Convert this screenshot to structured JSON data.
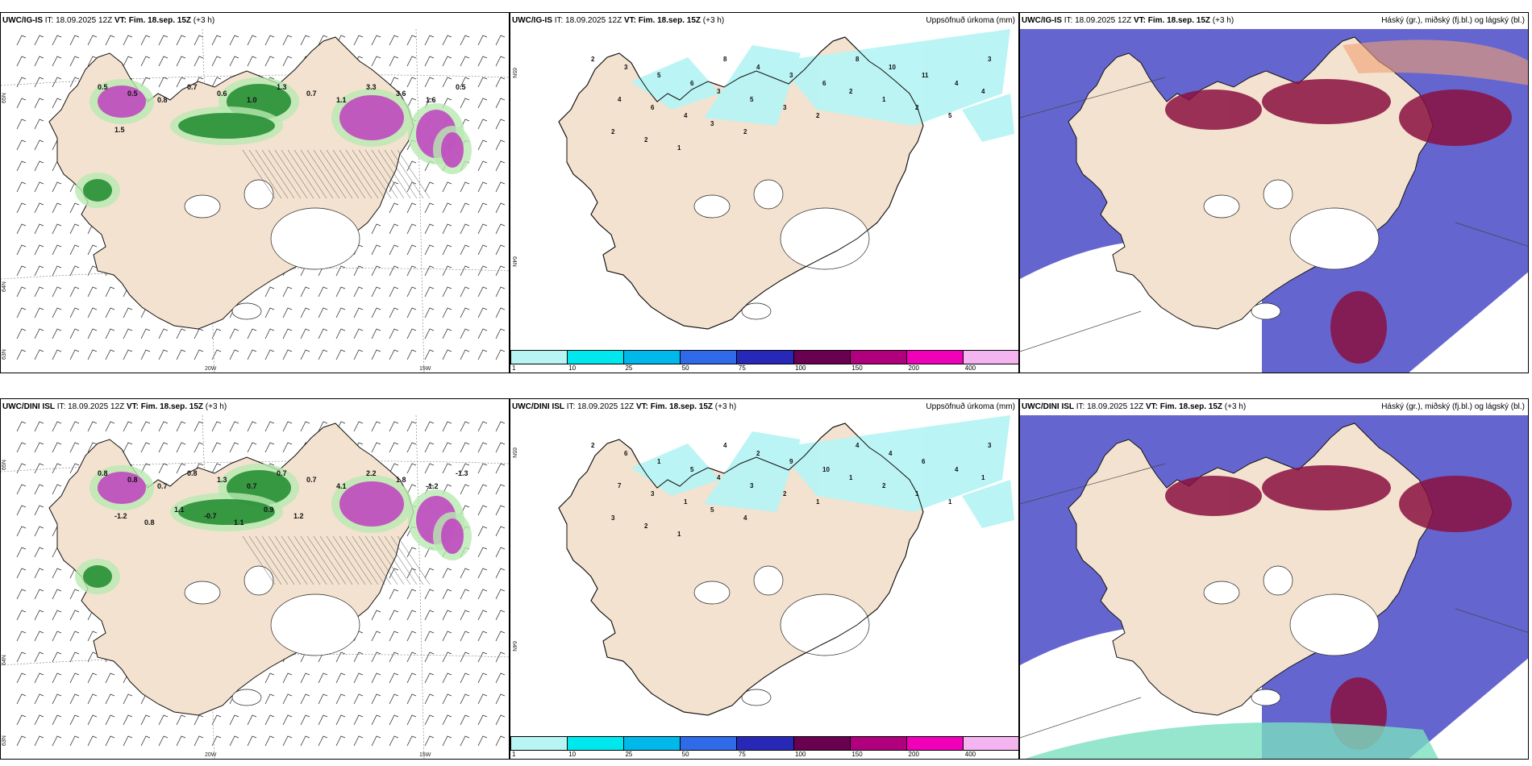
{
  "panels": [
    {
      "id": "ig-wind",
      "model": "UWC/IG-IS",
      "it_label": "IT: 18.09.2025 12Z",
      "vt_label": "VT: Fim. 18.sep. 15Z",
      "lead": "(+3 h)",
      "right_title": "",
      "lat_labels": [
        "65N",
        "64N",
        "63N"
      ],
      "lon_labels": [
        "20W",
        "15W"
      ],
      "values": [
        "0.5",
        "0.5",
        "0.8",
        "0.7",
        "0.6",
        "1.0",
        "1.3",
        "0.7",
        "1.1",
        "3.3",
        "3.6",
        "1.6",
        "0.5",
        "1.5"
      ]
    },
    {
      "id": "ig-precip",
      "model": "UWC/IG-IS",
      "it_label": "IT: 18.09.2025 12Z",
      "vt_label": "VT: Fim. 18.sep. 15Z",
      "lead": "(+3 h)",
      "right_title": "Uppsöfnuð úrkoma (mm)",
      "lat_labels": [
        "65N",
        "64N"
      ],
      "lon_labels": [],
      "values": [
        "2",
        "3",
        "5",
        "6",
        "8",
        "4",
        "3",
        "6",
        "8",
        "10",
        "11",
        "4",
        "3",
        "4",
        "6",
        "4",
        "3",
        "5",
        "3",
        "2",
        "2",
        "1",
        "2",
        "5",
        "4",
        "2",
        "2",
        "1",
        "3",
        "2"
      ]
    },
    {
      "id": "ig-cloud",
      "model": "UWC/IG-IS",
      "it_label": "IT: 18.09.2025 12Z",
      "vt_label": "VT: Fim. 18.sep. 15Z",
      "lead": "(+3 h)",
      "right_title": "Háský (gr.), miðský (fj.bl.) og lágský (bl.)",
      "lat_labels": [],
      "lon_labels": [],
      "values": []
    },
    {
      "id": "dini-wind",
      "model": "UWC/DINI ISL",
      "it_label": "IT: 18.09.2025 12Z",
      "vt_label": "VT: Fim. 18.sep. 15Z",
      "lead": "(+3 h)",
      "right_title": "",
      "lat_labels": [
        "65N",
        "64N",
        "63N"
      ],
      "lon_labels": [
        "20W",
        "15W"
      ],
      "values": [
        "0.8",
        "0.8",
        "0.7",
        "0.8",
        "1.3",
        "0.7",
        "0.7",
        "0.7",
        "4.1",
        "2.2",
        "1.8",
        "-1.2",
        "-1.3",
        "-1.2",
        "0.8",
        "1.1",
        "-0.7",
        "1.1",
        "0.9",
        "1.2"
      ]
    },
    {
      "id": "dini-precip",
      "model": "UWC/DINI ISL",
      "it_label": "IT: 18.09.2025 12Z",
      "vt_label": "VT: Fim. 18.sep. 15Z",
      "lead": "(+3 h)",
      "right_title": "Uppsöfnuð úrkoma (mm)",
      "lat_labels": [
        "65N",
        "64N"
      ],
      "lon_labels": [],
      "values": [
        "2",
        "6",
        "1",
        "5",
        "4",
        "2",
        "9",
        "10",
        "4",
        "4",
        "6",
        "4",
        "3",
        "7",
        "3",
        "1",
        "4",
        "3",
        "2",
        "1",
        "1",
        "2",
        "1",
        "1",
        "1",
        "3",
        "2",
        "1",
        "5",
        "4"
      ]
    },
    {
      "id": "dini-cloud",
      "model": "UWC/DINI ISL",
      "it_label": "IT: 18.09.2025 12Z",
      "vt_label": "VT: Fim. 18.sep. 15Z",
      "lead": "(+3 h)",
      "right_title": "Háský (gr.), miðský (fj.bl.) og lágský (bl.)",
      "lat_labels": [],
      "lon_labels": [],
      "values": []
    }
  ],
  "legend": {
    "ticks": [
      "1",
      "10",
      "25",
      "50",
      "75",
      "100",
      "150",
      "200",
      "400"
    ],
    "colors": [
      "#b8f4f4",
      "#00e8ee",
      "#00b8ea",
      "#2f6ae8",
      "#2828b8",
      "#6a0050",
      "#b0007e",
      "#f000b8",
      "#f4b4f0"
    ]
  },
  "colors": {
    "land": "#f3e2cf",
    "precip_light": "#b8f4f4",
    "wind_green": "#1e8a2e",
    "wind_light": "#b8eab0",
    "wind_magenta": "#c040c0",
    "cloud_low": "#4a4ac8",
    "cloud_mid": "#8a1040",
    "cloud_high": "#7ae0c0"
  }
}
